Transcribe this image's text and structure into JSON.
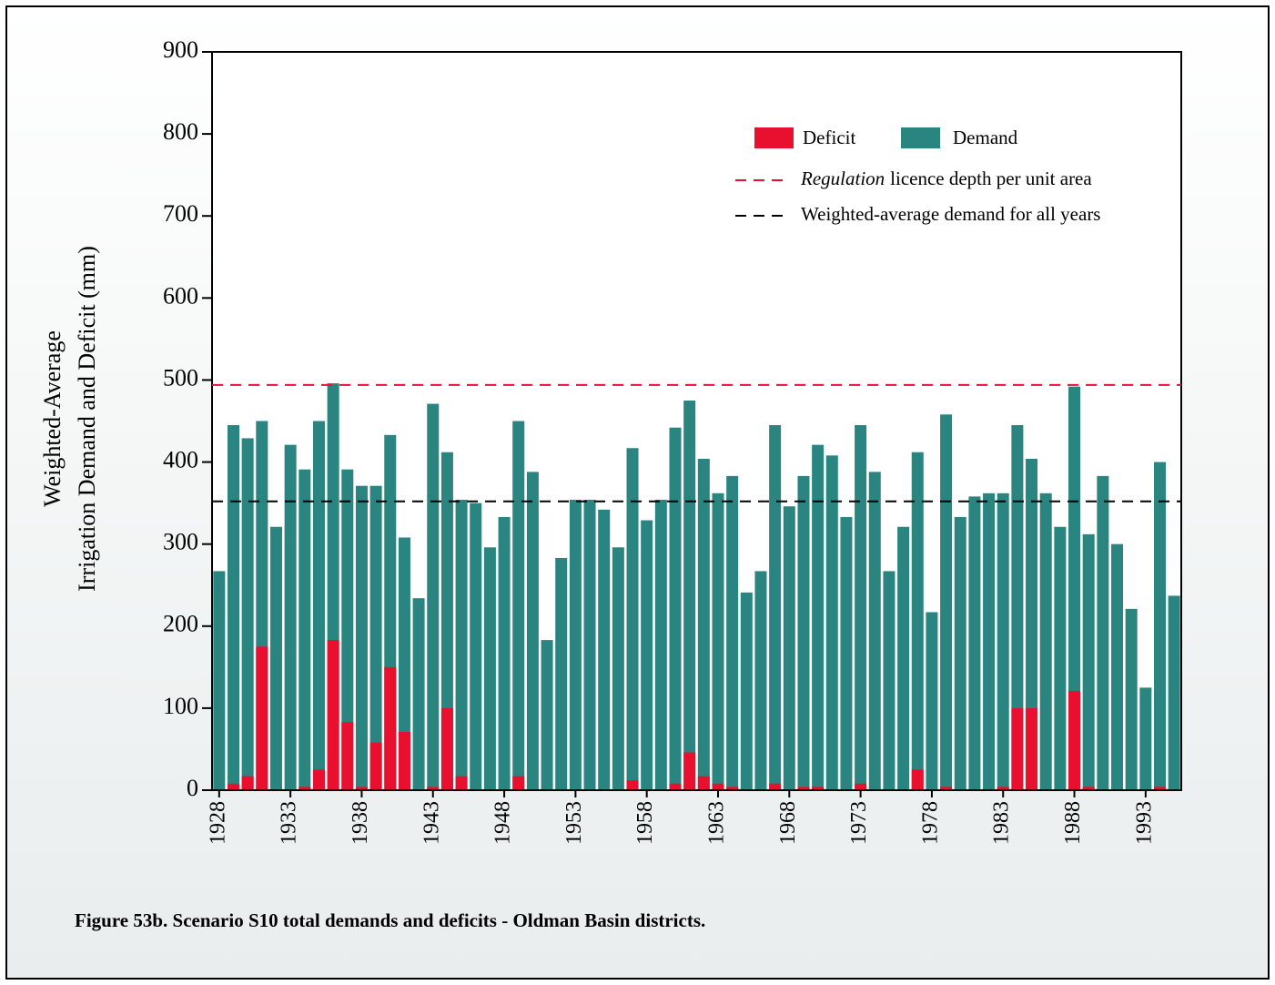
{
  "chart_data": {
    "type": "bar",
    "y_label_lines": [
      "Weighted-Average",
      "Irrigation Demand and Deficit (mm)"
    ],
    "caption": "Figure 53b. Scenario S10 total demands and deficits - Oldman Basin districts.",
    "x": [
      1928,
      1929,
      1930,
      1931,
      1932,
      1933,
      1934,
      1935,
      1936,
      1937,
      1938,
      1939,
      1940,
      1941,
      1942,
      1943,
      1944,
      1945,
      1946,
      1947,
      1948,
      1949,
      1950,
      1951,
      1952,
      1953,
      1954,
      1955,
      1956,
      1957,
      1958,
      1959,
      1960,
      1961,
      1962,
      1963,
      1964,
      1965,
      1966,
      1967,
      1968,
      1969,
      1970,
      1971,
      1972,
      1973,
      1974,
      1975,
      1976,
      1977,
      1978,
      1979,
      1980,
      1981,
      1982,
      1983,
      1984,
      1985,
      1986,
      1987,
      1988,
      1989,
      1990,
      1991,
      1992,
      1993,
      1994,
      1995
    ],
    "series": [
      {
        "name": "Demand",
        "color": "#2a8580",
        "values": [
          267,
          445,
          429,
          450,
          321,
          421,
          391,
          450,
          496,
          391,
          371,
          371,
          433,
          308,
          234,
          471,
          412,
          354,
          350,
          296,
          333,
          450,
          388,
          183,
          283,
          354,
          354,
          342,
          296,
          417,
          329,
          354,
          442,
          475,
          404,
          362,
          383,
          241,
          267,
          445,
          346,
          383,
          421,
          408,
          333,
          445,
          388,
          267,
          321,
          412,
          217,
          458,
          333,
          358,
          362,
          362,
          445,
          404,
          362,
          321,
          492,
          312,
          383,
          300,
          221,
          125,
          400,
          237
        ]
      },
      {
        "name": "Deficit",
        "color": "#e8102e",
        "values": [
          0,
          8,
          17,
          175,
          0,
          0,
          4,
          25,
          183,
          83,
          4,
          58,
          150,
          71,
          0,
          4,
          100,
          17,
          0,
          0,
          0,
          17,
          0,
          0,
          0,
          0,
          0,
          0,
          0,
          12,
          0,
          0,
          8,
          46,
          17,
          8,
          4,
          0,
          0,
          8,
          0,
          4,
          4,
          0,
          0,
          8,
          0,
          0,
          0,
          25,
          0,
          4,
          0,
          0,
          0,
          4,
          100,
          100,
          0,
          0,
          121,
          4,
          0,
          0,
          0,
          0,
          4,
          0
        ]
      }
    ],
    "reference_lines": [
      {
        "name_emphasis": "Regulation",
        "name": "licence depth per unit area",
        "value": 494,
        "color": "#e8102e"
      },
      {
        "name": "Weighted-average demand for all years",
        "value": 352,
        "color": "#000000"
      }
    ],
    "xlim": [
      1927.5,
      1995.5
    ],
    "xticks": [
      1928,
      1933,
      1938,
      1943,
      1948,
      1953,
      1958,
      1963,
      1968,
      1973,
      1978,
      1983,
      1988,
      1993
    ],
    "ylim": [
      0,
      900
    ],
    "yticks": [
      0,
      100,
      200,
      300,
      400,
      500,
      600,
      700,
      800,
      900
    ]
  }
}
